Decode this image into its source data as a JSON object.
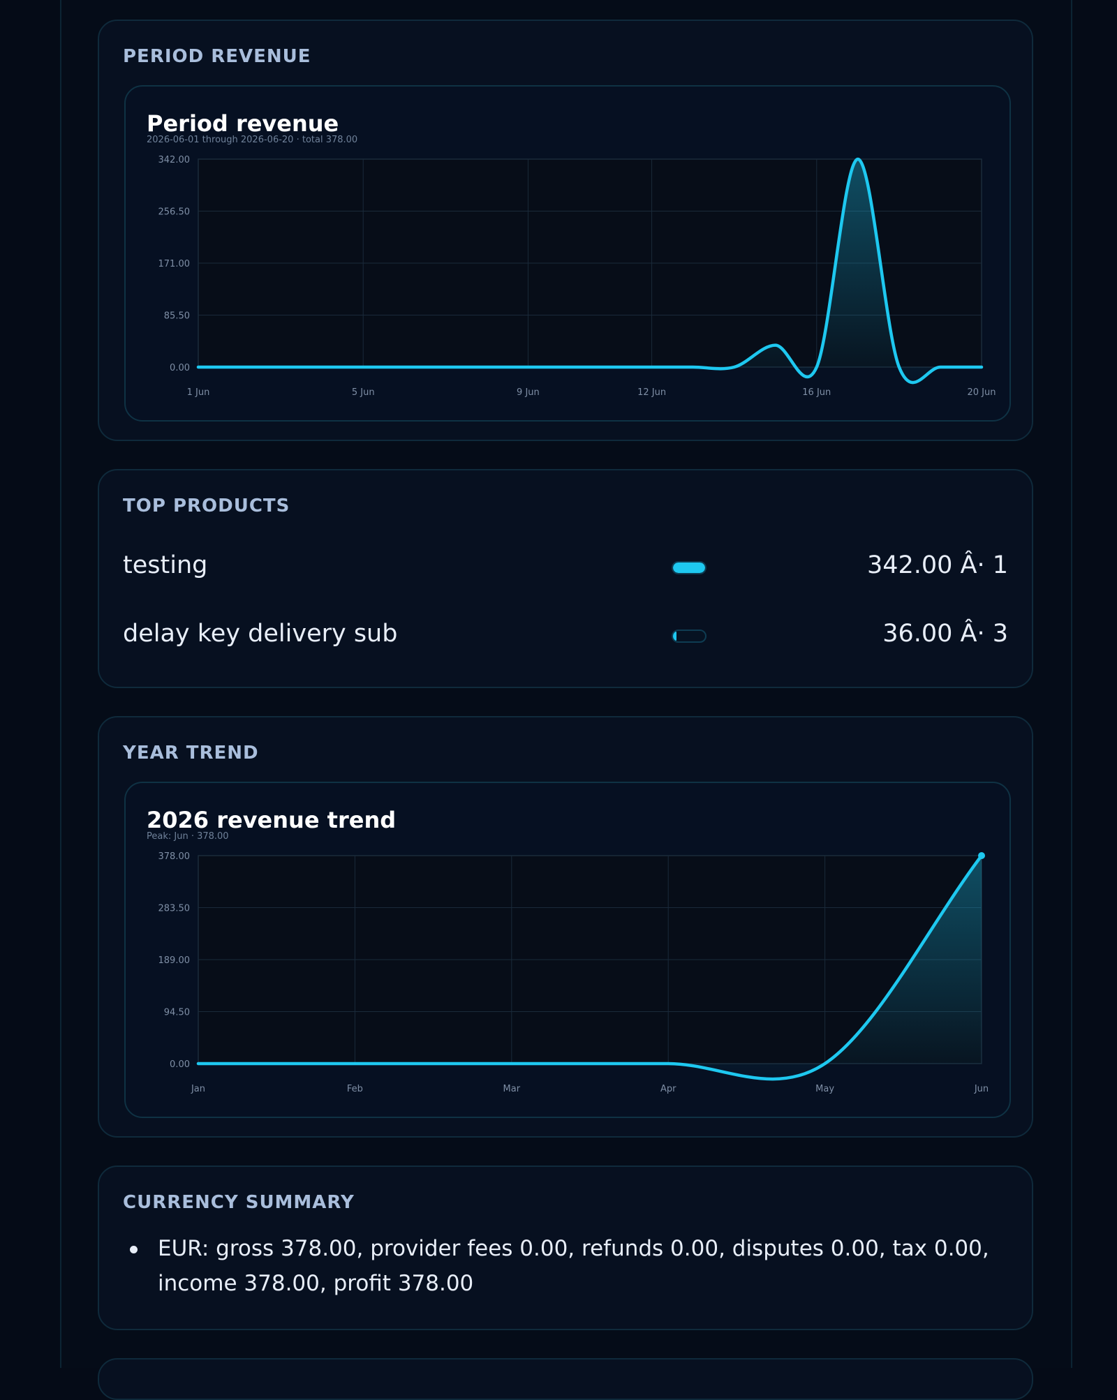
{
  "sections": {
    "period": {
      "title": "PERIOD REVENUE"
    },
    "products": {
      "title": "TOP PRODUCTS"
    },
    "year": {
      "title": "YEAR TREND"
    },
    "currency": {
      "title": "CURRENCY SUMMARY"
    }
  },
  "top_products": [
    {
      "name": "testing",
      "value": "342.00 Â· 1",
      "share": 1.0
    },
    {
      "name": "delay key delivery sub",
      "value": "36.00 Â· 3",
      "share": 0.105
    }
  ],
  "currency_summary": [
    "EUR: gross 378.00, provider fees 0.00, refunds 0.00, disputes 0.00, tax 0.00, income 378.00, profit 378.00"
  ],
  "colors": {
    "accent": "#1ec8f0",
    "grid": "#1a2a3a",
    "plot_bg": "#070d18"
  },
  "chart_data": [
    {
      "type": "area",
      "title": "Period revenue",
      "subtitle": "2026-06-01 through 2026-06-20 · total 378.00",
      "y_ticks": [
        "342.00",
        "256.50",
        "171.00",
        "85.50",
        "0.00"
      ],
      "ylim": [
        0,
        342
      ],
      "x_ticks": [
        {
          "day": 1,
          "label": "1 Jun"
        },
        {
          "day": 5,
          "label": "5 Jun"
        },
        {
          "day": 9,
          "label": "9 Jun"
        },
        {
          "day": 12,
          "label": "12 Jun"
        },
        {
          "day": 16,
          "label": "16 Jun"
        },
        {
          "day": 20,
          "label": "20 Jun"
        }
      ],
      "x": [
        "2026-06-01",
        "2026-06-02",
        "2026-06-03",
        "2026-06-04",
        "2026-06-05",
        "2026-06-06",
        "2026-06-07",
        "2026-06-08",
        "2026-06-09",
        "2026-06-10",
        "2026-06-11",
        "2026-06-12",
        "2026-06-13",
        "2026-06-14",
        "2026-06-15",
        "2026-06-16",
        "2026-06-17",
        "2026-06-18",
        "2026-06-19",
        "2026-06-20"
      ],
      "values": [
        0,
        0,
        0,
        0,
        0,
        0,
        0,
        0,
        0,
        0,
        0,
        0,
        0,
        0,
        36,
        0,
        342,
        0,
        0,
        0
      ],
      "grid": true
    },
    {
      "type": "area",
      "title": "2026 revenue trend",
      "subtitle": "Peak: Jun · 378.00",
      "y_ticks": [
        "378.00",
        "283.50",
        "189.00",
        "94.50",
        "0.00"
      ],
      "ylim": [
        0,
        378
      ],
      "categories": [
        "Jan",
        "Feb",
        "Mar",
        "Apr",
        "May",
        "Jun"
      ],
      "values": [
        0,
        0,
        0,
        0,
        0,
        378
      ],
      "grid": true
    }
  ]
}
